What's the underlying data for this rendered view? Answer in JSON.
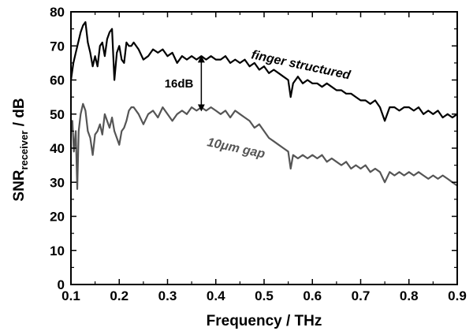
{
  "chart_data": {
    "type": "line",
    "xlabel": "Frequency / THz",
    "ylabel": {
      "main": "SNR",
      "sub": "receiver",
      "tail": " / dB"
    },
    "xlim": [
      0.1,
      0.9
    ],
    "ylim": [
      0,
      80
    ],
    "x_ticks": [
      "0.1",
      "0.2",
      "0.3",
      "0.4",
      "0.5",
      "0.6",
      "0.7",
      "0.8",
      "0.9"
    ],
    "y_ticks": [
      "0",
      "10",
      "20",
      "30",
      "40",
      "50",
      "60",
      "70",
      "80"
    ],
    "grid": false,
    "series": [
      {
        "name": "finger structured",
        "color": "#000000",
        "points": [
          [
            0.1,
            60
          ],
          [
            0.105,
            65
          ],
          [
            0.11,
            68
          ],
          [
            0.115,
            71
          ],
          [
            0.12,
            74
          ],
          [
            0.125,
            76
          ],
          [
            0.13,
            77
          ],
          [
            0.135,
            71
          ],
          [
            0.14,
            68
          ],
          [
            0.145,
            64
          ],
          [
            0.15,
            67
          ],
          [
            0.155,
            64
          ],
          [
            0.16,
            70
          ],
          [
            0.165,
            71
          ],
          [
            0.17,
            67
          ],
          [
            0.175,
            72
          ],
          [
            0.18,
            74
          ],
          [
            0.185,
            75
          ],
          [
            0.19,
            60
          ],
          [
            0.195,
            68
          ],
          [
            0.2,
            70
          ],
          [
            0.205,
            66
          ],
          [
            0.21,
            65
          ],
          [
            0.215,
            71
          ],
          [
            0.22,
            70
          ],
          [
            0.225,
            70
          ],
          [
            0.23,
            71
          ],
          [
            0.24,
            69
          ],
          [
            0.25,
            66
          ],
          [
            0.26,
            67
          ],
          [
            0.27,
            69
          ],
          [
            0.28,
            68
          ],
          [
            0.29,
            69
          ],
          [
            0.3,
            67
          ],
          [
            0.31,
            68
          ],
          [
            0.32,
            65
          ],
          [
            0.33,
            67
          ],
          [
            0.34,
            66
          ],
          [
            0.35,
            67
          ],
          [
            0.36,
            66
          ],
          [
            0.37,
            67
          ],
          [
            0.38,
            66
          ],
          [
            0.39,
            67
          ],
          [
            0.4,
            66
          ],
          [
            0.41,
            66
          ],
          [
            0.42,
            67
          ],
          [
            0.43,
            65
          ],
          [
            0.44,
            66
          ],
          [
            0.45,
            65
          ],
          [
            0.46,
            66
          ],
          [
            0.47,
            64
          ],
          [
            0.48,
            65
          ],
          [
            0.49,
            63
          ],
          [
            0.5,
            64
          ],
          [
            0.51,
            62
          ],
          [
            0.52,
            63
          ],
          [
            0.53,
            62
          ],
          [
            0.54,
            61
          ],
          [
            0.55,
            60
          ],
          [
            0.555,
            55
          ],
          [
            0.56,
            59
          ],
          [
            0.57,
            61
          ],
          [
            0.58,
            59
          ],
          [
            0.59,
            60
          ],
          [
            0.6,
            59
          ],
          [
            0.61,
            59
          ],
          [
            0.62,
            58
          ],
          [
            0.63,
            59
          ],
          [
            0.64,
            58
          ],
          [
            0.65,
            57
          ],
          [
            0.66,
            57
          ],
          [
            0.67,
            56
          ],
          [
            0.68,
            56
          ],
          [
            0.69,
            55
          ],
          [
            0.7,
            54
          ],
          [
            0.71,
            54
          ],
          [
            0.72,
            53
          ],
          [
            0.73,
            54
          ],
          [
            0.74,
            52
          ],
          [
            0.75,
            48
          ],
          [
            0.76,
            52
          ],
          [
            0.77,
            52
          ],
          [
            0.78,
            51
          ],
          [
            0.79,
            52
          ],
          [
            0.8,
            52
          ],
          [
            0.81,
            51
          ],
          [
            0.82,
            52
          ],
          [
            0.83,
            50
          ],
          [
            0.84,
            51
          ],
          [
            0.85,
            50
          ],
          [
            0.86,
            51
          ],
          [
            0.87,
            49
          ],
          [
            0.88,
            50
          ],
          [
            0.89,
            49
          ],
          [
            0.9,
            50
          ]
        ]
      },
      {
        "name": "10μm gap",
        "color": "#555555",
        "points": [
          [
            0.1,
            45
          ],
          [
            0.103,
            48
          ],
          [
            0.106,
            39
          ],
          [
            0.11,
            45
          ],
          [
            0.113,
            28
          ],
          [
            0.116,
            45
          ],
          [
            0.12,
            50
          ],
          [
            0.125,
            53
          ],
          [
            0.13,
            51
          ],
          [
            0.135,
            45
          ],
          [
            0.14,
            43
          ],
          [
            0.145,
            38
          ],
          [
            0.15,
            44
          ],
          [
            0.155,
            45
          ],
          [
            0.16,
            47
          ],
          [
            0.165,
            44
          ],
          [
            0.17,
            50
          ],
          [
            0.175,
            48
          ],
          [
            0.18,
            46
          ],
          [
            0.185,
            49
          ],
          [
            0.19,
            45
          ],
          [
            0.195,
            43
          ],
          [
            0.2,
            41
          ],
          [
            0.205,
            45
          ],
          [
            0.21,
            46
          ],
          [
            0.215,
            48
          ],
          [
            0.22,
            51
          ],
          [
            0.225,
            52
          ],
          [
            0.23,
            52
          ],
          [
            0.24,
            50
          ],
          [
            0.25,
            47
          ],
          [
            0.26,
            50
          ],
          [
            0.27,
            51
          ],
          [
            0.28,
            49
          ],
          [
            0.29,
            52
          ],
          [
            0.3,
            50
          ],
          [
            0.31,
            48
          ],
          [
            0.32,
            50
          ],
          [
            0.33,
            51
          ],
          [
            0.34,
            50
          ],
          [
            0.35,
            52
          ],
          [
            0.36,
            51
          ],
          [
            0.37,
            52
          ],
          [
            0.38,
            51
          ],
          [
            0.39,
            52
          ],
          [
            0.4,
            51
          ],
          [
            0.41,
            50
          ],
          [
            0.42,
            51
          ],
          [
            0.43,
            49
          ],
          [
            0.44,
            51
          ],
          [
            0.45,
            50
          ],
          [
            0.46,
            49
          ],
          [
            0.47,
            48
          ],
          [
            0.48,
            46
          ],
          [
            0.49,
            47
          ],
          [
            0.5,
            45
          ],
          [
            0.51,
            43
          ],
          [
            0.52,
            42
          ],
          [
            0.53,
            41
          ],
          [
            0.54,
            40
          ],
          [
            0.55,
            39
          ],
          [
            0.555,
            34
          ],
          [
            0.56,
            38
          ],
          [
            0.57,
            37
          ],
          [
            0.58,
            38
          ],
          [
            0.59,
            37
          ],
          [
            0.6,
            38
          ],
          [
            0.61,
            37
          ],
          [
            0.62,
            38
          ],
          [
            0.63,
            36
          ],
          [
            0.64,
            37
          ],
          [
            0.65,
            36
          ],
          [
            0.66,
            35
          ],
          [
            0.67,
            36
          ],
          [
            0.68,
            34
          ],
          [
            0.69,
            35
          ],
          [
            0.7,
            34
          ],
          [
            0.71,
            35
          ],
          [
            0.72,
            33
          ],
          [
            0.73,
            34
          ],
          [
            0.74,
            33
          ],
          [
            0.75,
            30
          ],
          [
            0.76,
            33
          ],
          [
            0.77,
            32
          ],
          [
            0.78,
            33
          ],
          [
            0.79,
            32
          ],
          [
            0.8,
            33
          ],
          [
            0.81,
            32
          ],
          [
            0.82,
            33
          ],
          [
            0.83,
            32
          ],
          [
            0.84,
            31
          ],
          [
            0.85,
            32
          ],
          [
            0.86,
            31
          ],
          [
            0.87,
            32
          ],
          [
            0.88,
            31
          ],
          [
            0.89,
            30
          ],
          [
            0.9,
            29
          ]
        ]
      }
    ],
    "annotations": {
      "gap_label": "16dB",
      "arrow": {
        "x": 0.37,
        "y_top": 67,
        "y_bottom": 51
      }
    }
  }
}
